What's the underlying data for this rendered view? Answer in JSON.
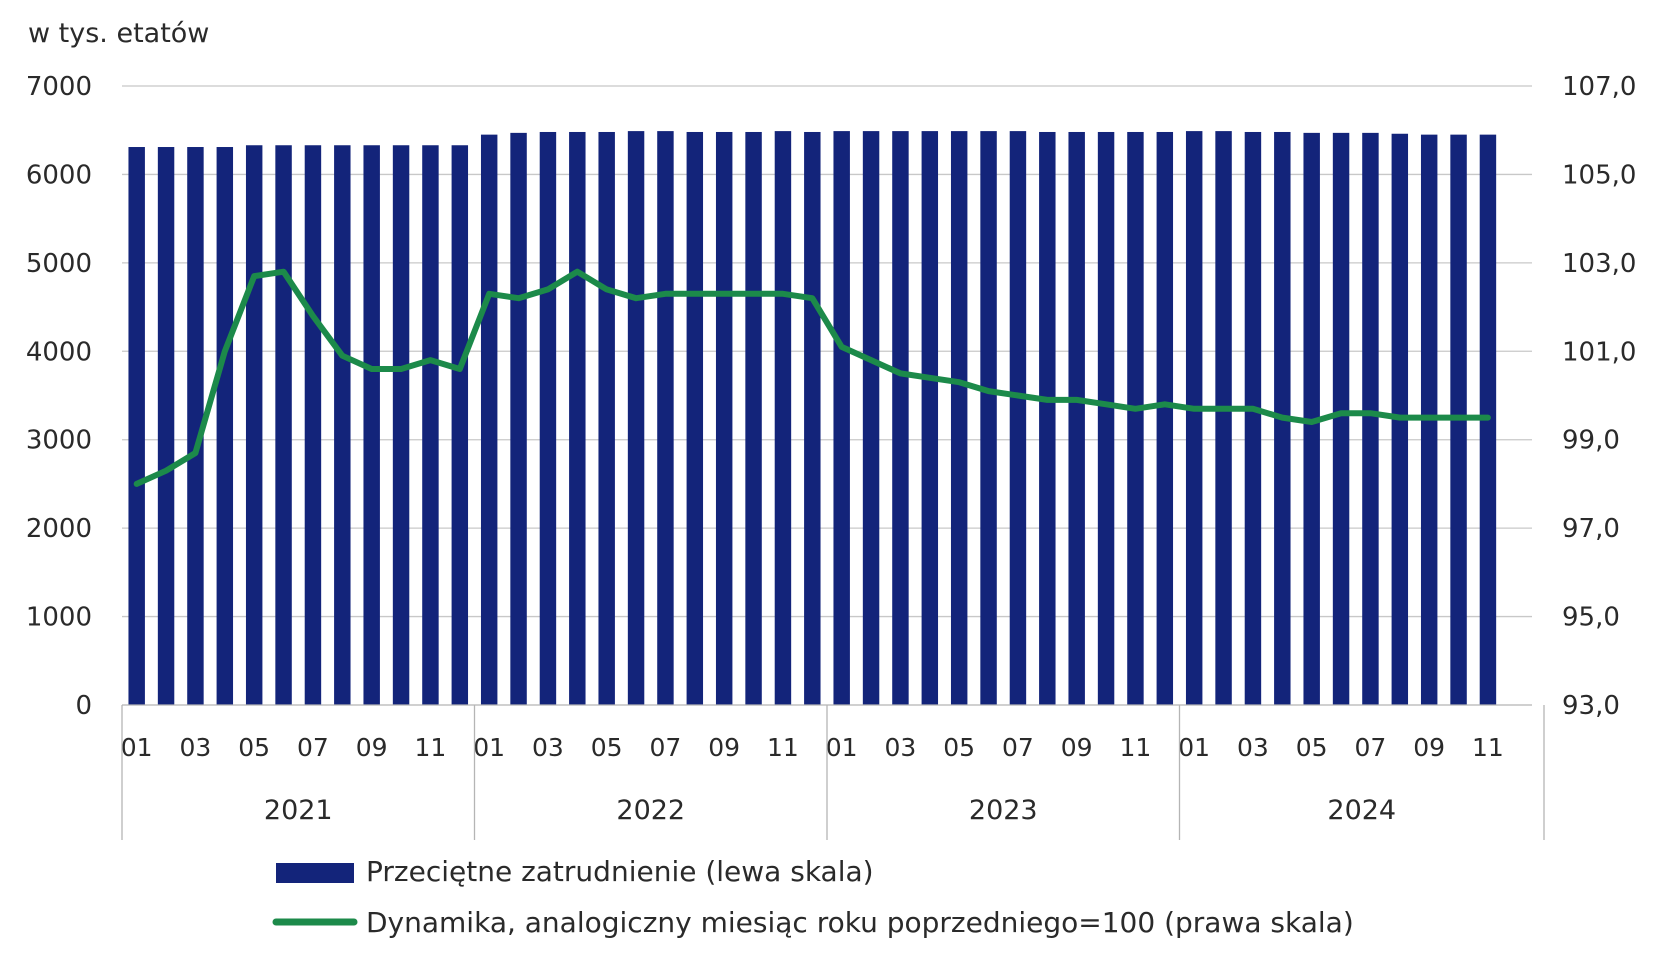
{
  "chart_data": {
    "type": "bar",
    "y_unit_label": "w tys. etatów",
    "categories": [
      "01",
      "02",
      "03",
      "04",
      "05",
      "06",
      "07",
      "08",
      "09",
      "10",
      "11",
      "12",
      "01",
      "02",
      "03",
      "04",
      "05",
      "06",
      "07",
      "08",
      "09",
      "10",
      "11",
      "12",
      "01",
      "02",
      "03",
      "04",
      "05",
      "06",
      "07",
      "08",
      "09",
      "10",
      "11",
      "12",
      "01",
      "02",
      "03",
      "04",
      "05",
      "06",
      "07",
      "08",
      "09",
      "10",
      "11"
    ],
    "x_tick_labels": [
      "01",
      "03",
      "05",
      "07",
      "09",
      "11",
      "01",
      "03",
      "05",
      "07",
      "09",
      "11",
      "01",
      "03",
      "05",
      "07",
      "09",
      "11",
      "01",
      "03",
      "05",
      "07",
      "09",
      "11"
    ],
    "years": [
      {
        "label": "2021",
        "months": 12
      },
      {
        "label": "2022",
        "months": 12
      },
      {
        "label": "2023",
        "months": 12
      },
      {
        "label": "2024",
        "months": 11
      }
    ],
    "series": [
      {
        "name": "Przeciętne zatrudnienie (lewa skala)",
        "type": "bar",
        "axis": "left",
        "color": "#13247a",
        "values": [
          6310,
          6310,
          6310,
          6310,
          6330,
          6330,
          6330,
          6330,
          6330,
          6330,
          6330,
          6330,
          6450,
          6470,
          6480,
          6480,
          6480,
          6490,
          6490,
          6480,
          6480,
          6480,
          6490,
          6480,
          6490,
          6490,
          6490,
          6490,
          6490,
          6490,
          6490,
          6480,
          6480,
          6480,
          6480,
          6480,
          6490,
          6490,
          6480,
          6480,
          6470,
          6470,
          6470,
          6460,
          6450,
          6450,
          6450
        ]
      },
      {
        "name": "Dynamika, analogiczny miesiąc roku poprzedniego=100 (prawa skala)",
        "type": "line",
        "axis": "right",
        "color": "#1c8a4a",
        "values": [
          98.0,
          98.3,
          98.7,
          101.0,
          102.7,
          102.8,
          101.8,
          100.9,
          100.6,
          100.6,
          100.8,
          100.6,
          102.3,
          102.2,
          102.4,
          102.8,
          102.4,
          102.2,
          102.3,
          102.3,
          102.3,
          102.3,
          102.3,
          102.2,
          101.1,
          100.8,
          100.5,
          100.4,
          100.3,
          100.1,
          100.0,
          99.9,
          99.9,
          99.8,
          99.7,
          99.8,
          99.7,
          99.7,
          99.7,
          99.5,
          99.4,
          99.6,
          99.6,
          99.5,
          99.5,
          99.5,
          99.5
        ]
      }
    ],
    "y_left": {
      "min": 0,
      "max": 7000,
      "ticks": [
        "0",
        "1000",
        "2000",
        "3000",
        "4000",
        "5000",
        "6000",
        "7000"
      ]
    },
    "y_right": {
      "min": 93.0,
      "max": 107.0,
      "ticks": [
        "93,0",
        "95,0",
        "97,0",
        "99,0",
        "101,0",
        "103,0",
        "105,0",
        "107,0"
      ]
    },
    "grid": "horizontal",
    "grid_color": "#c8c8c8",
    "legend_position": "bottom"
  },
  "legend": {
    "bar_label": "Przeciętne zatrudnienie (lewa skala)",
    "line_label": "Dynamika, analogiczny miesiąc roku poprzedniego=100 (prawa skala)"
  }
}
